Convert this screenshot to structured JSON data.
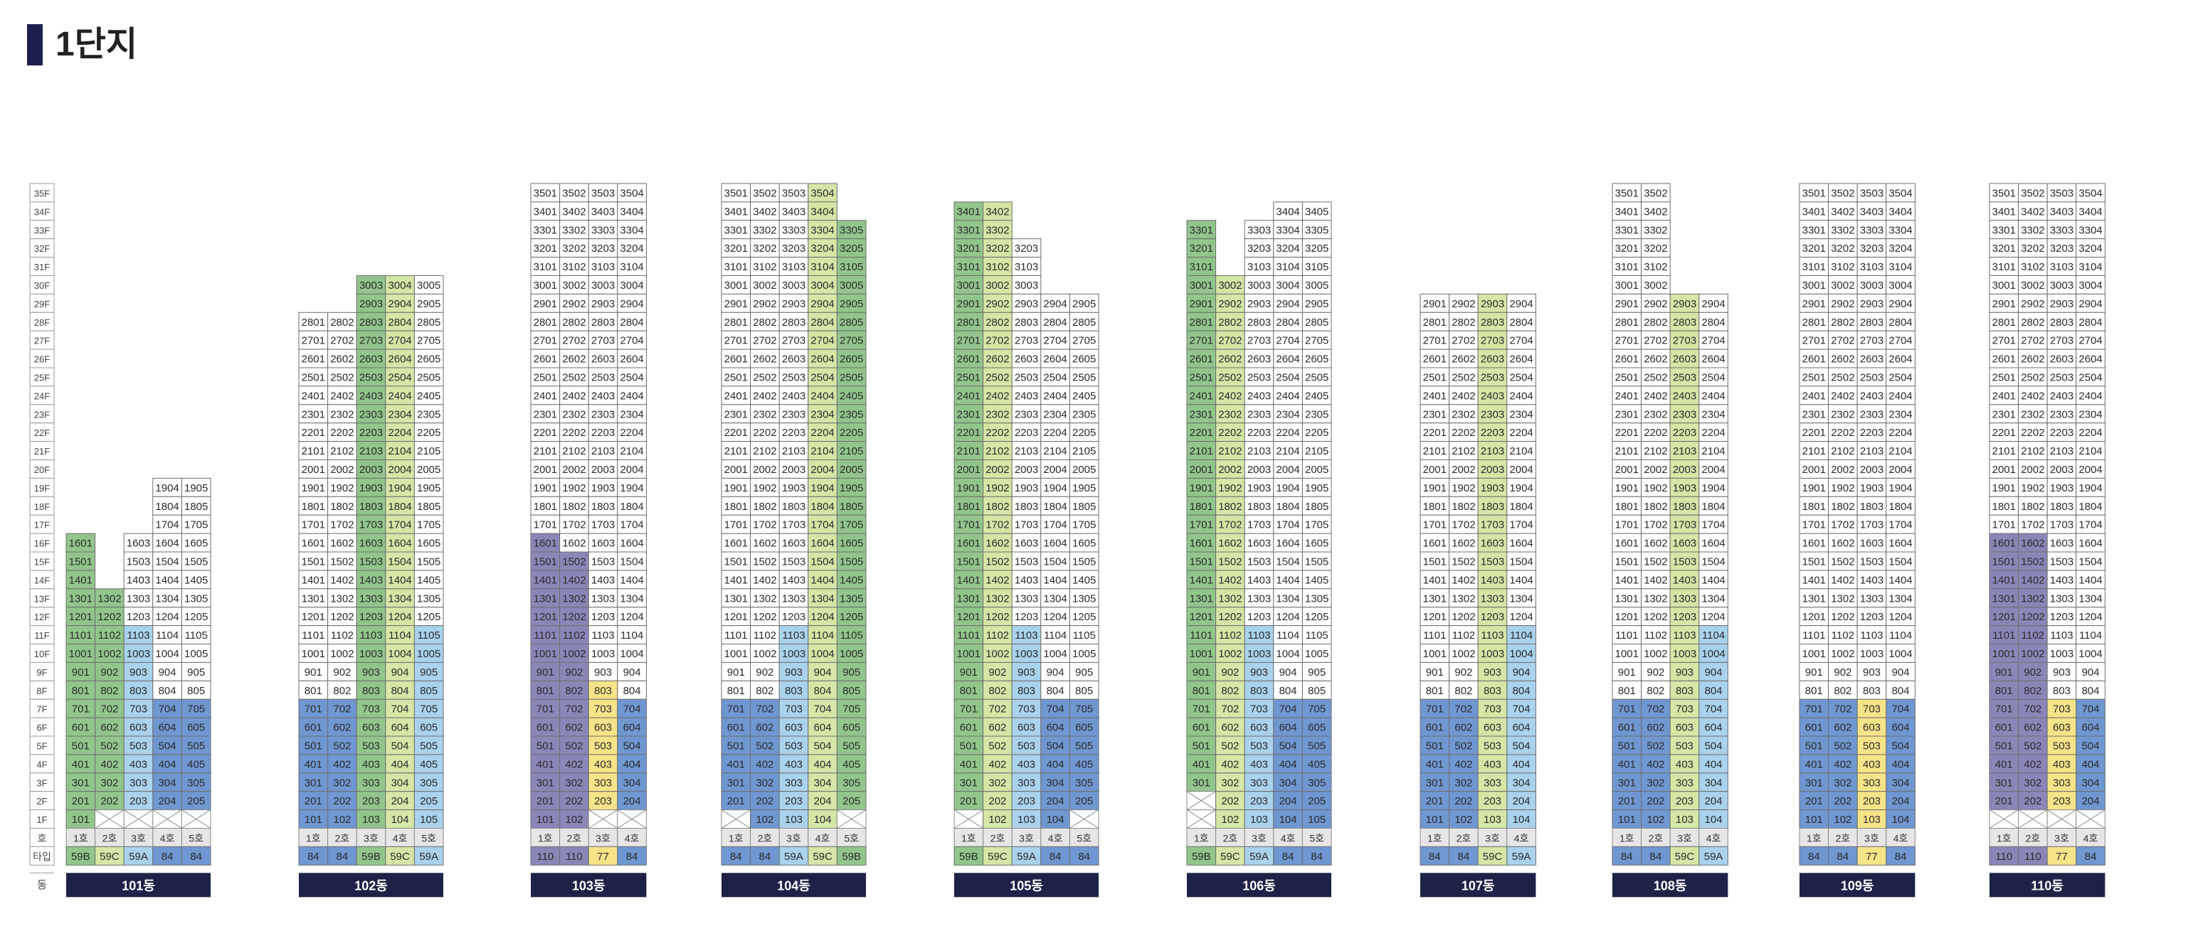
{
  "title": "1단지",
  "colors": {
    "white": "#ffffff",
    "green": "#92c58c",
    "lightgreen": "#d5e6a6",
    "lightblue": "#a9d2ec",
    "blue": "#6f97d1",
    "purple": "#8b86b8",
    "yellow": "#f7e489",
    "gray": "#e6e6e6",
    "navy": "#1f2247"
  },
  "type_colors": {
    "59B": "green",
    "59C": "lightgreen",
    "59A": "lightblue",
    "84": "blue",
    "110": "purple",
    "77": "yellow"
  },
  "floors": [
    "35F",
    "34F",
    "33F",
    "32F",
    "31F",
    "30F",
    "29F",
    "28F",
    "27F",
    "26F",
    "25F",
    "24F",
    "23F",
    "22F",
    "21F",
    "20F",
    "19F",
    "18F",
    "17F",
    "16F",
    "15F",
    "14F",
    "13F",
    "12F",
    "11F",
    "10F",
    "9F",
    "8F",
    "7F",
    "6F",
    "5F",
    "4F",
    "3F",
    "2F",
    "1F"
  ],
  "row_labels": {
    "ho": "호",
    "type": "타입",
    "dong": "동"
  },
  "buildings": [
    {
      "name": "101동",
      "cols": [
        "1호",
        "2호",
        "3호",
        "4호",
        "5호"
      ],
      "types": [
        "59B",
        "59C",
        "59A",
        "84",
        "84"
      ],
      "top": [
        16,
        13,
        16,
        19,
        19
      ],
      "min": [
        1,
        2,
        2,
        2,
        2
      ],
      "fill": [
        [
          1,
          16,
          "green"
        ],
        [
          1,
          4,
          "blue"
        ],
        [
          2,
          13,
          "green"
        ],
        [
          2,
          4,
          "blue"
        ],
        [
          3,
          11,
          "lightblue"
        ],
        [
          3,
          4,
          "blue"
        ],
        [
          4,
          7,
          "blue"
        ],
        [
          5,
          7,
          "blue"
        ]
      ]
    },
    {
      "name": "102동",
      "cols": [
        "1호",
        "2호",
        "3호",
        "4호",
        "5호"
      ],
      "types": [
        "84",
        "84",
        "59B",
        "59C",
        "59A"
      ],
      "top": [
        28,
        28,
        30,
        30,
        30
      ],
      "min": [
        1,
        1,
        1,
        1,
        1
      ],
      "fill": [
        [
          1,
          7,
          "blue"
        ],
        [
          2,
          7,
          "blue"
        ],
        [
          3,
          30,
          "green"
        ],
        [
          3,
          7,
          "blue"
        ],
        [
          4,
          30,
          "lightgreen"
        ],
        [
          4,
          7,
          "blue"
        ],
        [
          5,
          11,
          "lightblue"
        ],
        [
          5,
          7,
          "blue"
        ]
      ]
    },
    {
      "name": "103동",
      "cols": [
        "1호",
        "2호",
        "3호",
        "4호"
      ],
      "types": [
        "110",
        "110",
        "77",
        "84"
      ],
      "top": [
        35,
        35,
        35,
        35
      ],
      "min": [
        1,
        1,
        2,
        2
      ],
      "fill": [
        [
          1,
          16,
          "purple"
        ],
        [
          2,
          15,
          "purple"
        ],
        [
          3,
          8,
          "yellow"
        ],
        [
          4,
          7,
          "blue"
        ]
      ]
    },
    {
      "name": "104동",
      "cols": [
        "1호",
        "2호",
        "3호",
        "4호",
        "5호"
      ],
      "types": [
        "84",
        "84",
        "59A",
        "59C",
        "59B"
      ],
      "top": [
        35,
        35,
        35,
        35,
        33
      ],
      "min": [
        2,
        1,
        1,
        1,
        2
      ],
      "fill": [
        [
          1,
          7,
          "blue"
        ],
        [
          2,
          7,
          "blue"
        ],
        [
          3,
          11,
          "lightblue"
        ],
        [
          3,
          7,
          "blue"
        ],
        [
          4,
          35,
          "lightgreen"
        ],
        [
          4,
          7,
          "blue"
        ],
        [
          5,
          33,
          "green"
        ],
        [
          5,
          7,
          "blue"
        ]
      ]
    },
    {
      "name": "105동",
      "cols": [
        "1호",
        "2호",
        "3호",
        "4호",
        "5호"
      ],
      "types": [
        "59B",
        "59C",
        "59A",
        "84",
        "84"
      ],
      "top": [
        34,
        34,
        32,
        29,
        29
      ],
      "min": [
        2,
        1,
        1,
        1,
        2
      ],
      "fill": [
        [
          1,
          34,
          "green"
        ],
        [
          1,
          7,
          "blue"
        ],
        [
          2,
          34,
          "lightgreen"
        ],
        [
          2,
          7,
          "blue"
        ],
        [
          3,
          11,
          "lightblue"
        ],
        [
          3,
          7,
          "blue"
        ],
        [
          4,
          7,
          "blue"
        ],
        [
          5,
          7,
          "blue"
        ]
      ]
    },
    {
      "name": "106동",
      "cols": [
        "1호",
        "2호",
        "3호",
        "4호",
        "5호"
      ],
      "types": [
        "59B",
        "59C",
        "59A",
        "84",
        "84"
      ],
      "top": [
        33,
        30,
        33,
        34,
        34
      ],
      "min": [
        3,
        1,
        1,
        1,
        1
      ],
      "fill": [
        [
          1,
          33,
          "green"
        ],
        [
          1,
          7,
          "blue"
        ],
        [
          2,
          30,
          "lightgreen"
        ],
        [
          2,
          7,
          "blue"
        ],
        [
          3,
          11,
          "lightblue"
        ],
        [
          3,
          7,
          "blue"
        ],
        [
          4,
          7,
          "blue"
        ],
        [
          5,
          7,
          "blue"
        ]
      ]
    },
    {
      "name": "107동",
      "cols": [
        "1호",
        "2호",
        "3호",
        "4호"
      ],
      "types": [
        "84",
        "84",
        "59C",
        "59A"
      ],
      "top": [
        29,
        29,
        29,
        29
      ],
      "min": [
        1,
        1,
        1,
        1
      ],
      "fill": [
        [
          1,
          7,
          "blue"
        ],
        [
          2,
          7,
          "blue"
        ],
        [
          3,
          29,
          "lightgreen"
        ],
        [
          3,
          7,
          "blue"
        ],
        [
          4,
          11,
          "lightblue"
        ],
        [
          4,
          7,
          "blue"
        ]
      ]
    },
    {
      "name": "108동",
      "cols": [
        "1호",
        "2호",
        "3호",
        "4호"
      ],
      "types": [
        "84",
        "84",
        "59C",
        "59A"
      ],
      "top": [
        35,
        35,
        29,
        29
      ],
      "min": [
        1,
        1,
        1,
        1
      ],
      "fill": [
        [
          1,
          7,
          "blue"
        ],
        [
          2,
          7,
          "blue"
        ],
        [
          3,
          29,
          "lightgreen"
        ],
        [
          3,
          7,
          "blue"
        ],
        [
          4,
          11,
          "lightblue"
        ],
        [
          4,
          7,
          "blue"
        ]
      ]
    },
    {
      "name": "109동",
      "cols": [
        "1호",
        "2호",
        "3호",
        "4호"
      ],
      "types": [
        "84",
        "84",
        "77",
        "84"
      ],
      "top": [
        35,
        35,
        35,
        35
      ],
      "min": [
        1,
        1,
        1,
        1
      ],
      "fill": [
        [
          1,
          7,
          "blue"
        ],
        [
          2,
          7,
          "blue"
        ],
        [
          3,
          7,
          "yellow"
        ],
        [
          4,
          7,
          "blue"
        ]
      ]
    },
    {
      "name": "110동",
      "cols": [
        "1호",
        "2호",
        "3호",
        "4호"
      ],
      "types": [
        "110",
        "110",
        "77",
        "84"
      ],
      "top": [
        35,
        35,
        35,
        35
      ],
      "min": [
        2,
        2,
        2,
        2
      ],
      "fill": [
        [
          1,
          16,
          "purple"
        ],
        [
          2,
          16,
          "purple"
        ],
        [
          3,
          7,
          "yellow"
        ],
        [
          4,
          7,
          "blue"
        ]
      ]
    }
  ]
}
